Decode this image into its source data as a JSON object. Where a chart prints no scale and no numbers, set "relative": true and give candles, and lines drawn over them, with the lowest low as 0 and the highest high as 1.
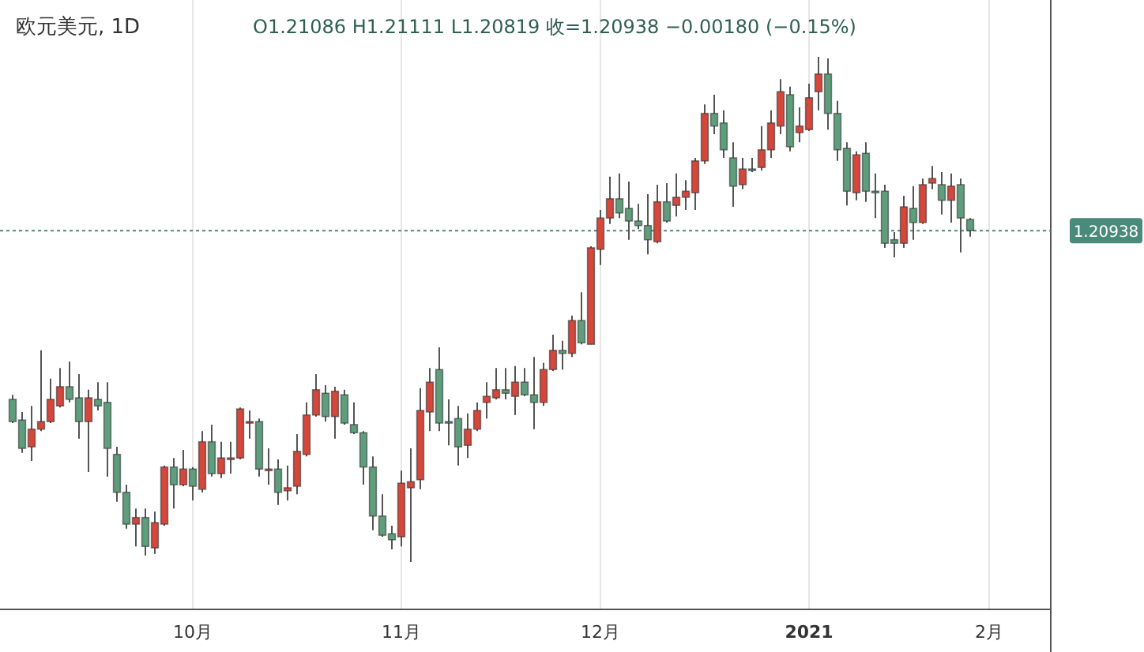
{
  "chart_data": {
    "type": "candlestick",
    "title": "欧元美元, 1D",
    "subtitle": "O1.21086  H1.21111  L1.20819  收=1.20938  −0.00180 (−0.15%)",
    "relative": true,
    "grid": "x",
    "categories": [
      null,
      null,
      null,
      null,
      null,
      null,
      null,
      null,
      null,
      null,
      null,
      null,
      null,
      null,
      null,
      null,
      null,
      null,
      null,
      "10月",
      null,
      null,
      null,
      null,
      null,
      null,
      null,
      null,
      null,
      null,
      null,
      null,
      null,
      null,
      null,
      null,
      null,
      null,
      null,
      null,
      null,
      "11月",
      null,
      null,
      null,
      null,
      null,
      null,
      null,
      null,
      null,
      null,
      null,
      null,
      null,
      null,
      null,
      null,
      null,
      null,
      null,
      null,
      "12月",
      null,
      null,
      null,
      null,
      null,
      null,
      null,
      null,
      null,
      null,
      null,
      null,
      null,
      null,
      null,
      null,
      null,
      null,
      null,
      null,
      null,
      "2021",
      null,
      null,
      null,
      null,
      null,
      null,
      null,
      null,
      null,
      null,
      null,
      null,
      null,
      null,
      null,
      null,
      null,
      null,
      "2月"
    ],
    "ohlc": [
      [
        0.322,
        0.331,
        0.275,
        0.278
      ],
      [
        0.281,
        0.297,
        0.216,
        0.225
      ],
      [
        0.228,
        0.309,
        0.2,
        0.263
      ],
      [
        0.263,
        0.419,
        0.259,
        0.278
      ],
      [
        0.278,
        0.363,
        0.275,
        0.322
      ],
      [
        0.309,
        0.384,
        0.306,
        0.347
      ],
      [
        0.347,
        0.397,
        0.316,
        0.322
      ],
      [
        0.325,
        0.372,
        0.244,
        0.278
      ],
      [
        0.278,
        0.341,
        0.178,
        0.325
      ],
      [
        0.322,
        0.356,
        0.3,
        0.309
      ],
      [
        0.316,
        0.356,
        0.169,
        0.225
      ],
      [
        0.213,
        0.228,
        0.119,
        0.138
      ],
      [
        0.138,
        0.153,
        0.066,
        0.075
      ],
      [
        0.075,
        0.106,
        0.031,
        0.088
      ],
      [
        0.088,
        0.106,
        0.013,
        0.031
      ],
      [
        0.028,
        0.1,
        0.016,
        0.078
      ],
      [
        0.075,
        0.191,
        0.072,
        0.188
      ],
      [
        0.188,
        0.206,
        0.106,
        0.153
      ],
      [
        0.153,
        0.222,
        0.15,
        0.184
      ],
      [
        0.184,
        0.188,
        0.122,
        0.15
      ],
      [
        0.144,
        0.259,
        0.138,
        0.238
      ],
      [
        0.238,
        0.272,
        0.169,
        0.175
      ],
      [
        0.175,
        0.238,
        0.166,
        0.206
      ],
      [
        0.203,
        0.238,
        0.175,
        0.206
      ],
      [
        0.206,
        0.306,
        0.203,
        0.303
      ],
      [
        0.275,
        0.3,
        0.244,
        0.278
      ],
      [
        0.278,
        0.284,
        0.169,
        0.184
      ],
      [
        0.181,
        0.225,
        0.153,
        0.184
      ],
      [
        0.184,
        0.203,
        0.113,
        0.138
      ],
      [
        0.141,
        0.191,
        0.122,
        0.147
      ],
      [
        0.15,
        0.253,
        0.134,
        0.219
      ],
      [
        0.213,
        0.316,
        0.209,
        0.291
      ],
      [
        0.291,
        0.372,
        0.288,
        0.341
      ],
      [
        0.334,
        0.35,
        0.278,
        0.288
      ],
      [
        0.288,
        0.347,
        0.244,
        0.338
      ],
      [
        0.331,
        0.341,
        0.272,
        0.275
      ],
      [
        0.272,
        0.316,
        0.253,
        0.256
      ],
      [
        0.256,
        0.259,
        0.153,
        0.188
      ],
      [
        0.188,
        0.209,
        0.063,
        0.091
      ],
      [
        0.091,
        0.134,
        0.05,
        0.053
      ],
      [
        0.056,
        0.072,
        0.025,
        0.044
      ],
      [
        0.05,
        0.181,
        0.031,
        0.156
      ],
      [
        0.147,
        0.225,
        0,
        0.159
      ],
      [
        0.163,
        0.344,
        0.144,
        0.3
      ],
      [
        0.297,
        0.384,
        0.259,
        0.356
      ],
      [
        0.381,
        0.425,
        0.259,
        0.275
      ],
      [
        0.278,
        0.322,
        0.231,
        0.275
      ],
      [
        0.284,
        0.309,
        0.191,
        0.228
      ],
      [
        0.231,
        0.294,
        0.206,
        0.263
      ],
      [
        0.263,
        0.316,
        0.259,
        0.3
      ],
      [
        0.316,
        0.356,
        0.284,
        0.328
      ],
      [
        0.325,
        0.384,
        0.322,
        0.341
      ],
      [
        0.341,
        0.384,
        0.322,
        0.334
      ],
      [
        0.328,
        0.388,
        0.291,
        0.356
      ],
      [
        0.356,
        0.384,
        0.328,
        0.331
      ],
      [
        0.331,
        0.406,
        0.263,
        0.316
      ],
      [
        0.316,
        0.394,
        0.309,
        0.381
      ],
      [
        0.381,
        0.45,
        0.378,
        0.419
      ],
      [
        0.419,
        0.438,
        0.381,
        0.413
      ],
      [
        0.413,
        0.488,
        0.406,
        0.478
      ],
      [
        0.478,
        0.534,
        0.431,
        0.434
      ],
      [
        0.431,
        0.625,
        0.431,
        0.622
      ],
      [
        0.619,
        0.697,
        0.588,
        0.681
      ],
      [
        0.681,
        0.763,
        0.669,
        0.719
      ],
      [
        0.719,
        0.769,
        0.681,
        0.691
      ],
      [
        0.7,
        0.753,
        0.638,
        0.675
      ],
      [
        0.675,
        0.709,
        0.659,
        0.666
      ],
      [
        0.666,
        0.728,
        0.609,
        0.638
      ],
      [
        0.634,
        0.747,
        0.631,
        0.713
      ],
      [
        0.713,
        0.75,
        0.672,
        0.675
      ],
      [
        0.706,
        0.769,
        0.684,
        0.722
      ],
      [
        0.722,
        0.756,
        0.697,
        0.734
      ],
      [
        0.731,
        0.8,
        0.697,
        0.794
      ],
      [
        0.794,
        0.906,
        0.788,
        0.888
      ],
      [
        0.888,
        0.925,
        0.847,
        0.863
      ],
      [
        0.869,
        0.894,
        0.8,
        0.816
      ],
      [
        0.8,
        0.831,
        0.703,
        0.744
      ],
      [
        0.747,
        0.8,
        0.738,
        0.778
      ],
      [
        0.778,
        0.8,
        0.772,
        0.775
      ],
      [
        0.781,
        0.863,
        0.775,
        0.816
      ],
      [
        0.816,
        0.894,
        0.8,
        0.869
      ],
      [
        0.863,
        0.956,
        0.847,
        0.931
      ],
      [
        0.925,
        0.941,
        0.813,
        0.822
      ],
      [
        0.85,
        0.9,
        0.831,
        0.863
      ],
      [
        0.856,
        0.947,
        0.853,
        0.919
      ],
      [
        0.931,
        1,
        0.894,
        0.966
      ],
      [
        0.966,
        0.997,
        0.856,
        0.888
      ],
      [
        0.888,
        0.913,
        0.794,
        0.816
      ],
      [
        0.819,
        0.831,
        0.706,
        0.734
      ],
      [
        0.731,
        0.813,
        0.716,
        0.806
      ],
      [
        0.809,
        0.831,
        0.713,
        0.734
      ],
      [
        0.734,
        0.769,
        0.681,
        0.731
      ],
      [
        0.734,
        0.747,
        0.622,
        0.631
      ],
      [
        0.638,
        0.653,
        0.603,
        0.631
      ],
      [
        0.631,
        0.725,
        0.622,
        0.703
      ],
      [
        0.7,
        0.744,
        0.638,
        0.672
      ],
      [
        0.672,
        0.759,
        0.669,
        0.747
      ],
      [
        0.75,
        0.784,
        0.738,
        0.759
      ],
      [
        0.747,
        0.772,
        0.688,
        0.716
      ],
      [
        0.716,
        0.769,
        0.672,
        0.744
      ],
      [
        0.747,
        0.759,
        0.613,
        0.681
      ],
      [
        0.678,
        0.681,
        0.644,
        0.656
      ],
      null,
      null
    ],
    "colors": [
      "#5e9e7c",
      "#5e9e7c",
      "#d5473b",
      "#d5473b",
      "#d5473b",
      "#d5473b",
      "#5e9e7c",
      "#5e9e7c",
      "#d5473b",
      "#5e9e7c",
      "#5e9e7c",
      "#5e9e7c",
      "#5e9e7c",
      "#d5473b",
      "#5e9e7c",
      "#d5473b",
      "#d5473b",
      "#5e9e7c",
      "#d5473b",
      "#5e9e7c",
      "#d5473b",
      "#5e9e7c",
      "#d5473b",
      "#d5473b",
      "#d5473b",
      "#d5473b",
      "#5e9e7c",
      "#d5473b",
      "#5e9e7c",
      "#d5473b",
      "#d5473b",
      "#d5473b",
      "#d5473b",
      "#5e9e7c",
      "#d5473b",
      "#5e9e7c",
      "#5e9e7c",
      "#5e9e7c",
      "#5e9e7c",
      "#5e9e7c",
      "#5e9e7c",
      "#d5473b",
      "#d5473b",
      "#d5473b",
      "#d5473b",
      "#5e9e7c",
      "#5e9e7c",
      "#5e9e7c",
      "#d5473b",
      "#d5473b",
      "#d5473b",
      "#d5473b",
      "#5e9e7c",
      "#d5473b",
      "#5e9e7c",
      "#5e9e7c",
      "#d5473b",
      "#d5473b",
      "#5e9e7c",
      "#d5473b",
      "#5e9e7c",
      "#d5473b",
      "#d5473b",
      "#d5473b",
      "#5e9e7c",
      "#5e9e7c",
      "#5e9e7c",
      "#5e9e7c",
      "#d5473b",
      "#5e9e7c",
      "#d5473b",
      "#d5473b",
      "#d5473b",
      "#d5473b",
      "#5e9e7c",
      "#5e9e7c",
      "#5e9e7c",
      "#d5473b",
      "#5e9e7c",
      "#d5473b",
      "#d5473b",
      "#d5473b",
      "#5e9e7c",
      "#d5473b",
      "#d5473b",
      "#d5473b",
      "#5e9e7c",
      "#5e9e7c",
      "#5e9e7c",
      "#d5473b",
      "#5e9e7c",
      "#5e9e7c",
      "#5e9e7c",
      "#5e9e7c",
      "#d5473b",
      "#5e9e7c",
      "#d5473b",
      "#d5473b",
      "#5e9e7c",
      "#d5473b",
      "#5e9e7c",
      "#5e9e7c",
      null,
      null
    ],
    "ref_lines": [
      {
        "axis": "y",
        "value": 0.656,
        "color": "#4a8a7a",
        "line_style": "dotted"
      }
    ],
    "annotations": [
      "1.20938"
    ]
  }
}
